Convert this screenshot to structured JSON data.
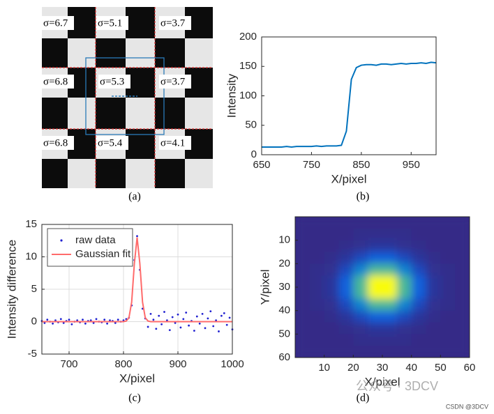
{
  "chart_data": [
    {
      "type": "image",
      "caption": "(a)",
      "annotations": [
        "σ=6.7",
        "σ=5.1",
        "σ=3.7",
        "σ=6.8",
        "σ=5.3",
        "σ=3.7",
        "σ=6.8",
        "σ=5.4",
        "σ=4.1"
      ]
    },
    {
      "type": "line",
      "caption": "(b)",
      "xlabel": "X/pixel",
      "ylabel": "Intensity",
      "xlim": [
        650,
        1000
      ],
      "ylim": [
        0,
        200
      ],
      "xticks": [
        650,
        750,
        850,
        950
      ],
      "yticks": [
        0,
        50,
        100,
        150,
        200
      ],
      "grid": false,
      "series": [
        {
          "color": "#0072bd",
          "mode": "line",
          "x": [
            650,
            660,
            670,
            680,
            690,
            700,
            710,
            720,
            730,
            740,
            750,
            760,
            770,
            780,
            790,
            800,
            810,
            820,
            830,
            840,
            850,
            860,
            870,
            880,
            890,
            900,
            910,
            920,
            930,
            940,
            950,
            960,
            970,
            980,
            990,
            1000
          ],
          "values": [
            13,
            13,
            13,
            13,
            13,
            14,
            13,
            14,
            14,
            14,
            14,
            15,
            14,
            15,
            15,
            15,
            16,
            40,
            128,
            148,
            152,
            153,
            153,
            152,
            154,
            154,
            153,
            154,
            155,
            154,
            155,
            155,
            156,
            155,
            157,
            156
          ]
        }
      ]
    },
    {
      "type": "scatter",
      "caption": "(c)",
      "xlabel": "X/pixel",
      "ylabel": "Intensity difference",
      "xlim": [
        650,
        1000
      ],
      "ylim": [
        -5,
        15
      ],
      "xticks": [
        700,
        800,
        900,
        1000
      ],
      "yticks": [
        -5,
        0,
        5,
        10,
        15
      ],
      "grid": true,
      "legend": "upper left",
      "series": [
        {
          "name": "raw data",
          "color": "#2020d0",
          "mode": "markers",
          "x": [
            650,
            655,
            660,
            665,
            670,
            675,
            680,
            685,
            690,
            695,
            700,
            705,
            710,
            715,
            720,
            725,
            730,
            735,
            740,
            745,
            750,
            755,
            760,
            765,
            770,
            775,
            780,
            785,
            790,
            795,
            800,
            805,
            810,
            815,
            820,
            825,
            830,
            835,
            840,
            845,
            850,
            855,
            860,
            865,
            870,
            875,
            880,
            885,
            890,
            895,
            900,
            905,
            910,
            915,
            920,
            925,
            930,
            935,
            940,
            945,
            950,
            955,
            960,
            965,
            970,
            975,
            980,
            985,
            990,
            995,
            1000
          ],
          "values": [
            0.1,
            -0.2,
            0.3,
            0.0,
            -0.3,
            0.2,
            -0.1,
            0.4,
            -0.2,
            0.1,
            0.3,
            -0.4,
            0.0,
            0.2,
            -0.1,
            0.3,
            -0.3,
            0.1,
            0.2,
            -0.2,
            0.4,
            0.0,
            -0.1,
            0.3,
            -0.3,
            0.2,
            0.1,
            -0.2,
            0.3,
            0.0,
            0.2,
            0.4,
            0.6,
            2.5,
            9.5,
            13.2,
            8.0,
            2.0,
            0.5,
            -0.8,
            1.2,
            0.3,
            -1.1,
            0.9,
            -0.4,
            1.5,
            0.2,
            -1.3,
            0.7,
            -0.2,
            1.1,
            -0.9,
            0.4,
            1.4,
            -0.6,
            0.1,
            -1.4,
            0.8,
            -0.3,
            1.2,
            -1.0,
            0.5,
            1.6,
            -0.7,
            0.2,
            -1.5,
            0.9,
            1.3,
            -0.5,
            0.6,
            -1.2
          ]
        },
        {
          "name": "Gaussian fit",
          "color": "#ff6b6b",
          "mode": "line",
          "x": [
            650,
            790,
            800,
            805,
            810,
            815,
            820,
            825,
            830,
            835,
            840,
            845,
            850,
            860,
            1000
          ],
          "values": [
            0,
            0,
            0,
            0.1,
            0.6,
            3.0,
            9.0,
            13.0,
            9.0,
            3.0,
            0.6,
            0.1,
            0,
            0,
            0
          ]
        }
      ]
    },
    {
      "type": "heatmap",
      "caption": "(d)",
      "xlabel": "X/pixel",
      "ylabel": "Y/pixel",
      "xlim": [
        0,
        60
      ],
      "ylim": [
        60,
        0
      ],
      "xticks": [
        10,
        20,
        30,
        40,
        50,
        60
      ],
      "yticks": [
        10,
        20,
        30,
        40,
        50,
        60
      ],
      "x": [
        2.5,
        7.5,
        12.5,
        17.5,
        22.5,
        27.5,
        32.5,
        37.5,
        42.5,
        47.5,
        52.5,
        57.5
      ],
      "y": [
        2.5,
        7.5,
        12.5,
        17.5,
        22.5,
        27.5,
        32.5,
        37.5,
        42.5,
        47.5,
        52.5,
        57.5
      ],
      "values": [
        [
          0,
          0,
          0,
          0,
          0,
          0,
          0,
          0,
          0,
          0,
          0,
          0
        ],
        [
          0,
          0,
          0,
          0,
          1,
          1,
          1,
          1,
          0,
          0,
          0,
          0
        ],
        [
          0,
          0,
          0,
          1,
          2,
          4,
          4,
          2,
          1,
          0,
          0,
          0
        ],
        [
          0,
          0,
          1,
          4,
          11,
          19,
          19,
          11,
          4,
          1,
          0,
          0
        ],
        [
          0,
          1,
          2,
          11,
          32,
          53,
          53,
          32,
          11,
          2,
          1,
          0
        ],
        [
          0,
          1,
          4,
          19,
          53,
          88,
          88,
          53,
          19,
          4,
          1,
          0
        ],
        [
          0,
          1,
          4,
          19,
          53,
          88,
          88,
          53,
          19,
          4,
          1,
          0
        ],
        [
          0,
          1,
          2,
          11,
          32,
          53,
          53,
          32,
          11,
          2,
          1,
          0
        ],
        [
          0,
          0,
          1,
          4,
          11,
          19,
          19,
          11,
          4,
          1,
          0,
          0
        ],
        [
          0,
          0,
          0,
          1,
          2,
          4,
          4,
          2,
          1,
          0,
          0,
          0
        ],
        [
          0,
          0,
          0,
          0,
          1,
          1,
          1,
          1,
          0,
          0,
          0,
          0
        ],
        [
          0,
          0,
          0,
          0,
          0,
          0,
          0,
          0,
          0,
          0,
          0,
          0
        ]
      ]
    }
  ],
  "watermarks": [
    "公众号 · 3DCV",
    "CSDN @3DCV"
  ]
}
